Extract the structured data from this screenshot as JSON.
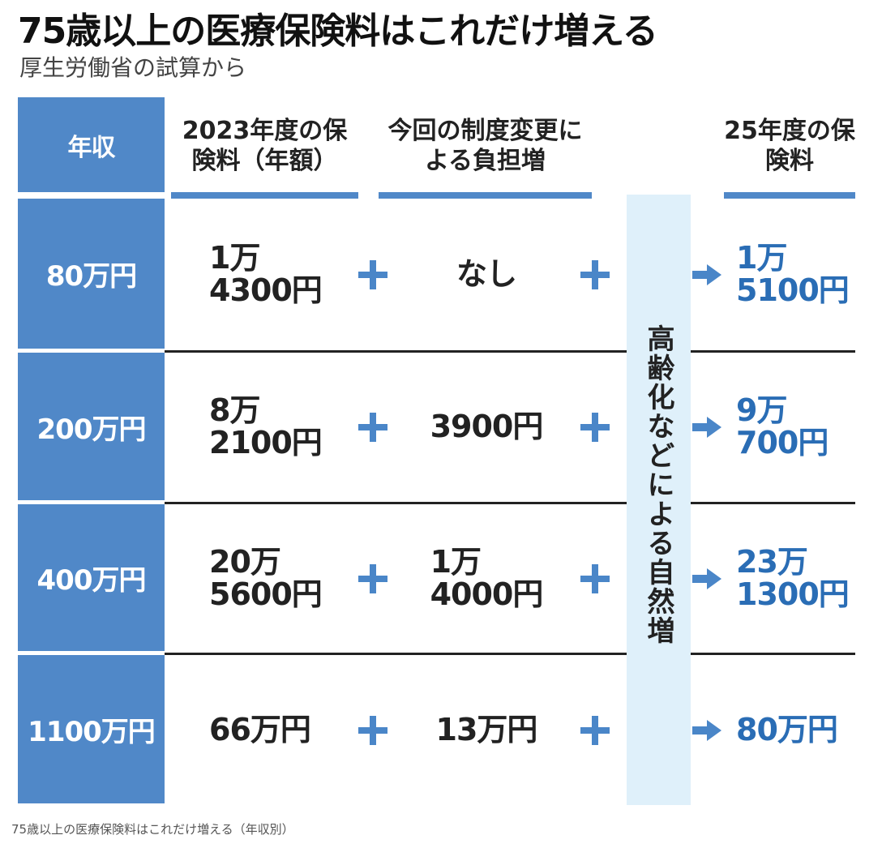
{
  "title": "75歳以上の医療保険料はこれだけ増える",
  "subtitle": "厚生労働省の試算から",
  "table": {
    "header": [
      [
        "年収"
      ],
      [
        "2023年度の",
        "保険料（年額）"
      ],
      [
        "今回の制度変更",
        "による負担増"
      ],
      [
        "25年度の",
        "保険料"
      ]
    ],
    "band": "高齢化などによる自然増",
    "rows": [
      [
        [
          "80万円"
        ],
        [
          "1万",
          "4300円"
        ],
        [
          "なし"
        ],
        [
          "1万",
          "5100円"
        ]
      ],
      [
        [
          "200万円"
        ],
        [
          "8万",
          "2100円"
        ],
        [
          "3900円"
        ],
        [
          "9万",
          "700円"
        ]
      ],
      [
        [
          "400万円"
        ],
        [
          "20万",
          "5600円"
        ],
        [
          "1万",
          "4000円"
        ],
        [
          "23万",
          "1300円"
        ]
      ],
      [
        [
          "1100万円"
        ],
        [
          "66万円"
        ],
        [
          "13万円"
        ],
        [
          "80万円"
        ]
      ]
    ]
  },
  "caption": "75歳以上の医療保険料はこれだけ増える（年収別）"
}
